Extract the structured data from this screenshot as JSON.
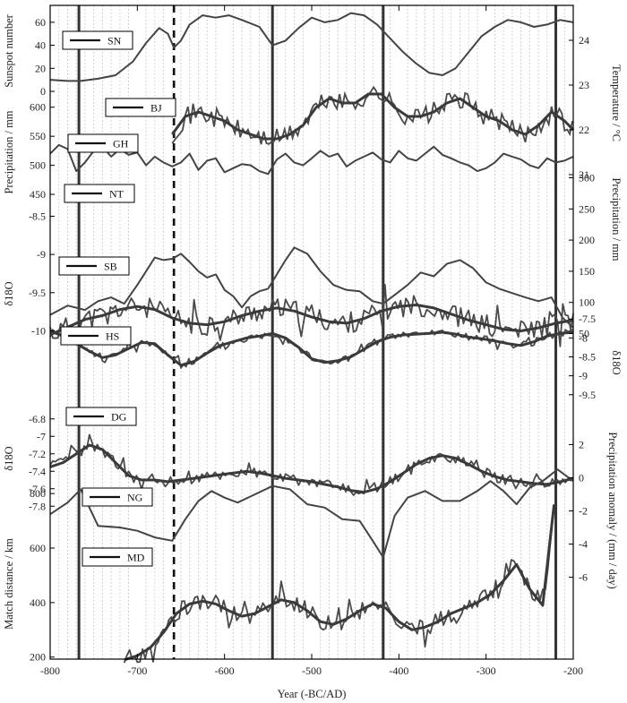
{
  "chart_data": {
    "type": "line",
    "x_axis": {
      "label": "Year (-BC/AD)",
      "range": [
        -800,
        -200
      ],
      "ticks": [
        "-800",
        "-700",
        "-600",
        "-500",
        "-400",
        "-300",
        "-200"
      ],
      "tick_values": [
        -800,
        -700,
        -600,
        -500,
        -400,
        -300,
        -200
      ]
    },
    "left_axes": [
      {
        "id": "sn",
        "label": "Sunspot number",
        "range": [
          0,
          70
        ],
        "ticks": [
          "0",
          "20",
          "40",
          "60"
        ],
        "tick_values": [
          0,
          20,
          40,
          60
        ]
      },
      {
        "id": "prec",
        "label": "Precipitation / mm",
        "range": [
          430,
          615
        ],
        "ticks": [
          "450",
          "500",
          "550",
          "600"
        ],
        "tick_values": [
          450,
          500,
          550,
          600
        ]
      },
      {
        "id": "d18o_sb",
        "label": "δ18O",
        "range": [
          -10.1,
          -8.6
        ],
        "ticks": [
          "-10",
          "-9.5",
          "-9",
          "-8.5"
        ],
        "tick_values": [
          -10,
          -9.5,
          -9,
          -8.5
        ]
      },
      {
        "id": "d18o_dg",
        "label": "δ18O",
        "range": [
          -7.9,
          -6.7
        ],
        "ticks": [
          "-7.8",
          "-7.6",
          "-7.4",
          "-7.2",
          "-7",
          "-6.8"
        ],
        "tick_values": [
          -7.8,
          -7.6,
          -7.4,
          -7.2,
          -7,
          -6.8
        ]
      },
      {
        "id": "md",
        "label": "Match distance / km",
        "range": [
          140,
          830
        ],
        "ticks": [
          "200",
          "400",
          "600",
          "800"
        ],
        "tick_values": [
          200,
          400,
          600,
          800
        ]
      }
    ],
    "right_axes": [
      {
        "id": "temp",
        "label": "Temperature / °C",
        "range": [
          20.8,
          24.4
        ],
        "ticks": [
          "21",
          "22",
          "23",
          "24"
        ],
        "tick_values": [
          21,
          22,
          23,
          24
        ]
      },
      {
        "id": "prec_nt",
        "label": "Precipitation / mm",
        "range": [
          45,
          305
        ],
        "ticks": [
          "50",
          "100",
          "150",
          "200",
          "250",
          "300"
        ],
        "tick_values": [
          50,
          100,
          150,
          200,
          250,
          300
        ]
      },
      {
        "id": "d18o_hs",
        "label": "δ18O",
        "range": [
          -9.6,
          -7.4
        ],
        "ticks": [
          "-9.5",
          "-9",
          "-8.5",
          "-8",
          "-7.5"
        ],
        "tick_values": [
          -9.5,
          -9,
          -8.5,
          -8,
          -7.5
        ]
      },
      {
        "id": "precanom",
        "label": "Precipitation anomaly / (mm / day)",
        "range": [
          -6.4,
          2.4
        ],
        "ticks": [
          "2",
          "0",
          "-2",
          "-4",
          "-6"
        ],
        "tick_values": [
          2,
          0,
          -2,
          -4,
          -6
        ]
      }
    ],
    "vertical_lines": {
      "solid": [
        -767,
        -545,
        -418,
        -220
      ],
      "dashed": [
        -658
      ]
    },
    "series": [
      {
        "name": "SN",
        "axis": "sn",
        "x": [
          -800,
          -780,
          -765,
          -745,
          -725,
          -705,
          -690,
          -675,
          -665,
          -658,
          -650,
          -640,
          -625,
          -610,
          -595,
          -580,
          -560,
          -545,
          -530,
          -515,
          -500,
          -485,
          -470,
          -455,
          -440,
          -425,
          -410,
          -395,
          -380,
          -365,
          -350,
          -335,
          -320,
          -305,
          -290,
          -275,
          -260,
          -245,
          -230,
          -215,
          -200
        ],
        "y": [
          10,
          9,
          9,
          11,
          14,
          26,
          42,
          55,
          50,
          38,
          44,
          58,
          66,
          64,
          66,
          62,
          56,
          40,
          44,
          55,
          64,
          60,
          62,
          68,
          66,
          58,
          46,
          34,
          24,
          16,
          14,
          20,
          34,
          48,
          56,
          62,
          60,
          56,
          58,
          62,
          60
        ]
      },
      {
        "name": "BJ",
        "axis": "temp",
        "smooth": true,
        "x": [
          -660,
          -645,
          -630,
          -615,
          -600,
          -585,
          -570,
          -555,
          -540,
          -525,
          -510,
          -495,
          -480,
          -465,
          -450,
          -435,
          -420,
          -405,
          -390,
          -375,
          -360,
          -345,
          -330,
          -315,
          -300,
          -285,
          -270,
          -255,
          -240,
          -225,
          -210,
          -200
        ],
        "y": [
          21.9,
          22.3,
          22.4,
          22.3,
          22.2,
          22.0,
          21.9,
          21.8,
          21.8,
          21.9,
          22.1,
          22.5,
          22.7,
          22.6,
          22.6,
          22.8,
          22.8,
          22.5,
          22.3,
          22.3,
          22.4,
          22.6,
          22.7,
          22.5,
          22.3,
          22.2,
          22.0,
          21.9,
          22.1,
          22.4,
          22.2,
          22.0
        ]
      },
      {
        "name": "GH",
        "axis": "prec",
        "x": [
          -800,
          -790,
          -780,
          -770,
          -760,
          -750,
          -740,
          -730,
          -720,
          -710,
          -700,
          -690,
          -680,
          -670,
          -660,
          -650,
          -640,
          -630,
          -620,
          -610,
          -600,
          -590,
          -580,
          -570,
          -560,
          -550,
          -540,
          -530,
          -520,
          -510,
          -500,
          -490,
          -480,
          -470,
          -460,
          -450,
          -440,
          -430,
          -420,
          -410,
          -400,
          -390,
          -380,
          -370,
          -360,
          -350,
          -340,
          -330,
          -320,
          -310,
          -300,
          -290,
          -280,
          -270,
          -260,
          -250,
          -240,
          -230,
          -220,
          -210,
          -200
        ],
        "y": [
          520,
          535,
          528,
          490,
          505,
          525,
          532,
          515,
          528,
          518,
          522,
          500,
          515,
          505,
          498,
          505,
          520,
          492,
          508,
          512,
          488,
          495,
          502,
          500,
          490,
          485,
          510,
          520,
          505,
          500,
          512,
          525,
          515,
          520,
          498,
          508,
          515,
          522,
          510,
          505,
          525,
          512,
          508,
          520,
          532,
          518,
          512,
          505,
          500,
          490,
          495,
          505,
          520,
          515,
          510,
          500,
          495,
          512,
          505,
          508,
          515
        ]
      },
      {
        "name": "NT",
        "axis": "prec_nt",
        "x": [
          -800,
          -780,
          -760,
          -745,
          -730,
          -715,
          -700,
          -690,
          -680,
          -670,
          -660,
          -650,
          -640,
          -630,
          -620,
          -610,
          -600,
          -590,
          -580,
          -570,
          -560,
          -550,
          -540,
          -530,
          -520,
          -505,
          -490,
          -475,
          -460,
          -445,
          -430,
          -418,
          -405,
          -390,
          -375,
          -360,
          -345,
          -330,
          -315,
          -300,
          -285,
          -270,
          -255,
          -240,
          -225,
          -212,
          -200
        ],
        "y": [
          80,
          95,
          88,
          102,
          108,
          98,
          128,
          150,
          172,
          168,
          170,
          178,
          165,
          150,
          140,
          145,
          120,
          110,
          92,
          110,
          118,
          122,
          145,
          168,
          188,
          178,
          150,
          128,
          120,
          118,
          102,
          98,
          112,
          128,
          148,
          142,
          162,
          168,
          155,
          132,
          122,
          115,
          108,
          102,
          108,
          75,
          60
        ]
      },
      {
        "name": "SB",
        "axis": "d18o_sb",
        "noisy": true,
        "seed": 11,
        "noise": 0.14,
        "x": [
          -800,
          -780,
          -760,
          -740,
          -720,
          -700,
          -680,
          -660,
          -640,
          -620,
          -600,
          -580,
          -560,
          -540,
          -520,
          -500,
          -480,
          -460,
          -440,
          -420,
          -400,
          -380,
          -360,
          -340,
          -320,
          -300,
          -280,
          -260,
          -240,
          -220,
          -200
        ],
        "y": [
          -10.05,
          -9.95,
          -9.85,
          -9.8,
          -9.72,
          -9.68,
          -9.72,
          -9.83,
          -9.9,
          -9.92,
          -9.88,
          -9.8,
          -9.74,
          -9.7,
          -9.74,
          -9.82,
          -9.88,
          -9.9,
          -9.84,
          -9.74,
          -9.68,
          -9.66,
          -9.7,
          -9.78,
          -9.86,
          -9.92,
          -9.98,
          -10.0,
          -9.96,
          -9.9,
          -9.86
        ]
      },
      {
        "name": "HS",
        "axis": "d18o_hs",
        "noisy": true,
        "seed": 23,
        "noise": 0.09,
        "x": [
          -800,
          -785,
          -770,
          -755,
          -740,
          -725,
          -710,
          -695,
          -680,
          -665,
          -650,
          -635,
          -620,
          -605,
          -590,
          -575,
          -560,
          -545,
          -530,
          -515,
          -500,
          -485,
          -470,
          -455,
          -440,
          -425,
          -410,
          -395,
          -380,
          -365,
          -350,
          -335,
          -320,
          -305,
          -290,
          -275,
          -260,
          -245,
          -230,
          -215,
          -200
        ],
        "y": [
          -7.82,
          -7.95,
          -8.15,
          -8.35,
          -8.52,
          -8.45,
          -8.28,
          -8.12,
          -8.15,
          -8.45,
          -8.72,
          -8.62,
          -8.4,
          -8.2,
          -8.1,
          -8.0,
          -7.95,
          -7.88,
          -8.0,
          -8.25,
          -8.55,
          -8.65,
          -8.6,
          -8.5,
          -8.3,
          -8.1,
          -7.98,
          -7.92,
          -7.9,
          -7.88,
          -7.85,
          -7.9,
          -7.98,
          -8.02,
          -8.08,
          -8.15,
          -8.2,
          -8.1,
          -7.95,
          -7.88,
          -7.85
        ]
      },
      {
        "name": "DG",
        "axis": "d18o_dg",
        "noisy": true,
        "seed": 37,
        "noise": 0.06,
        "x": [
          -800,
          -785,
          -770,
          -755,
          -740,
          -725,
          -710,
          -695,
          -680,
          -665,
          -650,
          -635,
          -620,
          -605,
          -590,
          -575,
          -560,
          -545,
          -530,
          -515,
          -500,
          -485,
          -470,
          -455,
          -440,
          -425,
          -410,
          -395,
          -380,
          -365,
          -350,
          -335,
          -320,
          -305,
          -290,
          -275,
          -260,
          -245,
          -230,
          -215,
          -200
        ],
        "y": [
          -7.35,
          -7.3,
          -7.2,
          -7.1,
          -7.15,
          -7.3,
          -7.45,
          -7.5,
          -7.5,
          -7.52,
          -7.5,
          -7.48,
          -7.46,
          -7.44,
          -7.42,
          -7.4,
          -7.42,
          -7.45,
          -7.48,
          -7.5,
          -7.52,
          -7.55,
          -7.58,
          -7.62,
          -7.64,
          -7.6,
          -7.52,
          -7.42,
          -7.32,
          -7.25,
          -7.22,
          -7.25,
          -7.32,
          -7.4,
          -7.46,
          -7.5,
          -7.52,
          -7.54,
          -7.55,
          -7.52,
          -7.48
        ]
      },
      {
        "name": "NG",
        "axis": "precanom",
        "x": [
          -800,
          -780,
          -765,
          -745,
          -720,
          -700,
          -680,
          -660,
          -645,
          -630,
          -615,
          -600,
          -585,
          -565,
          -545,
          -525,
          -505,
          -485,
          -465,
          -445,
          -430,
          -418,
          -405,
          -390,
          -370,
          -350,
          -330,
          -310,
          -295,
          -280,
          -265,
          -250,
          -235,
          -218,
          -200
        ],
        "y": [
          -2.2,
          -1.5,
          -0.7,
          -2.9,
          -3.0,
          -3.2,
          -3.6,
          -3.8,
          -2.5,
          -1.4,
          -0.8,
          -1.2,
          -1.5,
          -1.0,
          -0.5,
          -0.7,
          -1.6,
          -1.8,
          -2.5,
          -2.6,
          -3.8,
          -4.8,
          -2.3,
          -1.2,
          -0.8,
          -1.4,
          -1.4,
          -0.8,
          -0.2,
          -0.8,
          -1.6,
          -0.6,
          -0.2,
          0.5,
          -0.2
        ]
      },
      {
        "name": "MD",
        "axis": "md",
        "noisy": true,
        "seed": 53,
        "noise": 32,
        "x_start": -715,
        "x": [
          -715,
          -700,
          -685,
          -670,
          -655,
          -640,
          -625,
          -610,
          -595,
          -580,
          -565,
          -550,
          -535,
          -520,
          -505,
          -490,
          -475,
          -460,
          -445,
          -430,
          -415,
          -400,
          -385,
          -370,
          -355,
          -340,
          -325,
          -310,
          -295,
          -280,
          -265,
          -250,
          -235,
          -222
        ],
        "y": [
          190,
          205,
          235,
          290,
          360,
          395,
          405,
          395,
          370,
          350,
          360,
          385,
          410,
          400,
          370,
          330,
          320,
          340,
          370,
          395,
          380,
          330,
          300,
          310,
          330,
          360,
          380,
          400,
          430,
          480,
          540,
          450,
          390,
          760
        ]
      }
    ],
    "legend_labels": [
      "SN",
      "BJ",
      "GH",
      "NT",
      "SB",
      "HS",
      "DG",
      "NG",
      "MD"
    ]
  }
}
